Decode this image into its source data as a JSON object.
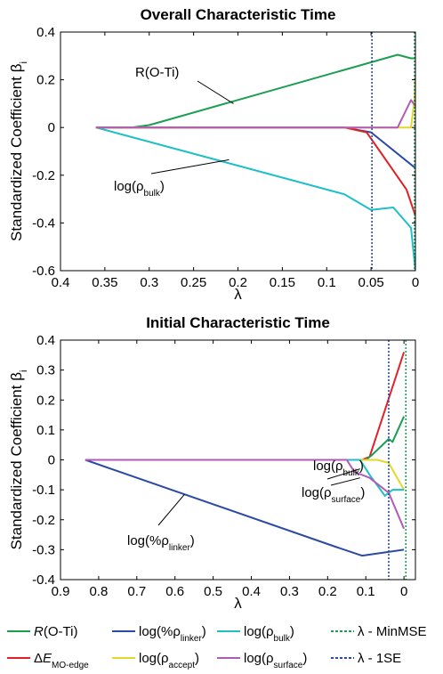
{
  "chart_data": [
    {
      "type": "line",
      "title": "Overall Characteristic Time",
      "xlabel": "λ",
      "ylabel": "Standardized Coefficient β",
      "ylabel_sub": "i",
      "xlim": [
        0.4,
        0
      ],
      "ylim": [
        -0.6,
        0.4
      ],
      "x_ticks": [
        "0.4",
        "0.35",
        "0.3",
        "0.25",
        "0.2",
        "0.15",
        "0.1",
        "0.05",
        "0"
      ],
      "x_tick_values": [
        0.4,
        0.35,
        0.3,
        0.25,
        0.2,
        0.15,
        0.1,
        0.05,
        0
      ],
      "y_ticks": [
        "0.4",
        "0.2",
        "0",
        "-0.2",
        "-0.4",
        "-0.6"
      ],
      "y_tick_values": [
        0.4,
        0.2,
        0,
        -0.2,
        -0.4,
        -0.6
      ],
      "vlines": [
        {
          "x": 0.049,
          "style": "1SE"
        },
        {
          "x": 0.001,
          "style": "MinMSE"
        }
      ],
      "series": [
        {
          "key": "rOTi",
          "color": "#1a9e50",
          "x": [
            0.36,
            0.32,
            0.3,
            0.02,
            0.005,
            0.0
          ],
          "y": [
            0.0,
            0.0,
            0.01,
            0.305,
            0.29,
            0.29
          ]
        },
        {
          "key": "bulk",
          "color": "#1fbfc8",
          "x": [
            0.36,
            0.08,
            0.05,
            0.025,
            0.005,
            0.0
          ],
          "y": [
            0.0,
            -0.28,
            -0.345,
            -0.335,
            -0.42,
            -0.6
          ]
        },
        {
          "key": "linker",
          "color": "#2b4aa6",
          "x": [
            0.36,
            0.08,
            0.05,
            0.0
          ],
          "y": [
            0.0,
            0.0,
            -0.02,
            -0.17
          ]
        },
        {
          "key": "dE",
          "color": "#e21f26",
          "x": [
            0.36,
            0.08,
            0.055,
            0.04,
            0.01,
            0.0
          ],
          "y": [
            0.0,
            0.0,
            -0.02,
            -0.1,
            -0.26,
            -0.37
          ]
        },
        {
          "key": "accept",
          "color": "#e3d82a",
          "x": [
            0.36,
            0.005,
            0.001,
            0.0
          ],
          "y": [
            0.0,
            0.0,
            0.12,
            0.22
          ]
        },
        {
          "key": "surface",
          "color": "#b05bb7",
          "x": [
            0.36,
            0.02,
            0.005,
            0.0
          ],
          "y": [
            0.0,
            0.0,
            0.115,
            0.09
          ]
        }
      ],
      "annotations": [
        {
          "text": "R(O-Ti)",
          "pointer": [
            0.205,
            0.1
          ]
        },
        {
          "text": "log(ρ",
          "sub": "bulk",
          "text_end": ")",
          "pointer": [
            0.21,
            -0.135
          ]
        }
      ]
    },
    {
      "type": "line",
      "title": "Initial Characteristic Time",
      "xlabel": "λ",
      "ylabel": "Standardized Coefficient β",
      "ylabel_sub": "i",
      "xlim": [
        0.9,
        -0.03
      ],
      "ylim": [
        -0.4,
        0.4
      ],
      "x_ticks": [
        "0.9",
        "0.8",
        "0.7",
        "0.6",
        "0.5",
        "0.4",
        "0.3",
        "0.2",
        "0.1",
        "0"
      ],
      "x_tick_values": [
        0.9,
        0.8,
        0.7,
        0.6,
        0.5,
        0.4,
        0.3,
        0.2,
        0.1,
        0
      ],
      "y_ticks": [
        "0.4",
        "0.3",
        "0.2",
        "0.1",
        "0",
        "-0.1",
        "-0.2",
        "-0.3",
        "-0.4"
      ],
      "y_tick_values": [
        0.4,
        0.3,
        0.2,
        0.1,
        0,
        -0.1,
        -0.2,
        -0.3,
        -0.4
      ],
      "vlines": [
        {
          "x": 0.04,
          "style": "1SE"
        },
        {
          "x": -0.005,
          "style": "MinMSE"
        }
      ],
      "series": [
        {
          "key": "linker",
          "color": "#2b4aa6",
          "x": [
            0.835,
            0.18,
            0.11,
            0.0
          ],
          "y": [
            0.0,
            -0.29,
            -0.32,
            -0.3
          ]
        },
        {
          "key": "dE",
          "color": "#e21f26",
          "x": [
            0.835,
            0.11,
            0.09,
            0.0
          ],
          "y": [
            0.0,
            0.0,
            0.01,
            0.36
          ]
        },
        {
          "key": "rOTi",
          "color": "#1a9e50",
          "x": [
            0.835,
            0.1,
            0.085,
            0.04,
            0.03,
            0.0
          ],
          "y": [
            0.0,
            0.0,
            0.015,
            0.07,
            0.06,
            0.145
          ]
        },
        {
          "key": "accept",
          "color": "#e3d82a",
          "x": [
            0.835,
            0.07,
            0.04,
            0.0
          ],
          "y": [
            0.0,
            0.0,
            -0.01,
            -0.1
          ]
        },
        {
          "key": "bulk",
          "color": "#1fbfc8",
          "x": [
            0.835,
            0.115,
            0.09,
            0.05,
            0.03,
            0.0
          ],
          "y": [
            0.0,
            0.0,
            -0.05,
            -0.12,
            -0.1,
            -0.1
          ]
        },
        {
          "key": "surface",
          "color": "#b05bb7",
          "x": [
            0.835,
            0.15,
            0.13,
            0.09,
            0.04,
            0.0
          ],
          "y": [
            0.0,
            0.0,
            -0.04,
            -0.06,
            -0.11,
            -0.23
          ]
        }
      ],
      "annotations": [
        {
          "text": "log(ρ",
          "sub": "bulk",
          "text_end": ")",
          "pointer": [
            0.115,
            -0.03
          ]
        },
        {
          "text": "log(ρ",
          "sub": "surface",
          "text_end": ")",
          "pointer": [
            0.115,
            -0.06
          ]
        },
        {
          "text": "log(%ρ",
          "sub": "linker",
          "text_end": ")",
          "pointer": [
            0.575,
            -0.115
          ]
        }
      ]
    }
  ],
  "legend": {
    "items": [
      {
        "key": "rOTi",
        "color": "#1a9e50",
        "style": "solid",
        "pre": "",
        "main": "R",
        "main_italic": true,
        "rest": "(O-Ti)",
        "sub": "",
        "end": ""
      },
      {
        "key": "linker",
        "color": "#2b4aa6",
        "style": "solid",
        "pre": "",
        "main": "log(%ρ",
        "main_italic": false,
        "rest": "",
        "sub": "linker",
        "end": ")"
      },
      {
        "key": "bulk",
        "color": "#1fbfc8",
        "style": "solid",
        "pre": "",
        "main": "log(ρ",
        "main_italic": false,
        "rest": "",
        "sub": "bulk",
        "end": ")"
      },
      {
        "key": "minmse",
        "color": "#1a9e50",
        "style": "dashed",
        "pre": "",
        "main": "λ - MinMSE",
        "main_italic": false,
        "rest": "",
        "sub": "",
        "end": ""
      },
      {
        "key": "dE",
        "color": "#e21f26",
        "style": "solid",
        "pre": "Δ",
        "main": "E",
        "main_italic": true,
        "rest": "",
        "sub": "MO-edge",
        "end": ""
      },
      {
        "key": "accept",
        "color": "#e3d82a",
        "style": "solid",
        "pre": "",
        "main": "log(ρ",
        "main_italic": false,
        "rest": "",
        "sub": "accept",
        "end": ")"
      },
      {
        "key": "surface",
        "color": "#b05bb7",
        "style": "solid",
        "pre": "",
        "main": "log(ρ",
        "main_italic": false,
        "rest": "",
        "sub": "surface",
        "end": ")"
      },
      {
        "key": "1se",
        "color": "#2b4aa6",
        "style": "dashed",
        "pre": "",
        "main": "λ - 1SE",
        "main_italic": false,
        "rest": "",
        "sub": "",
        "end": ""
      }
    ]
  }
}
